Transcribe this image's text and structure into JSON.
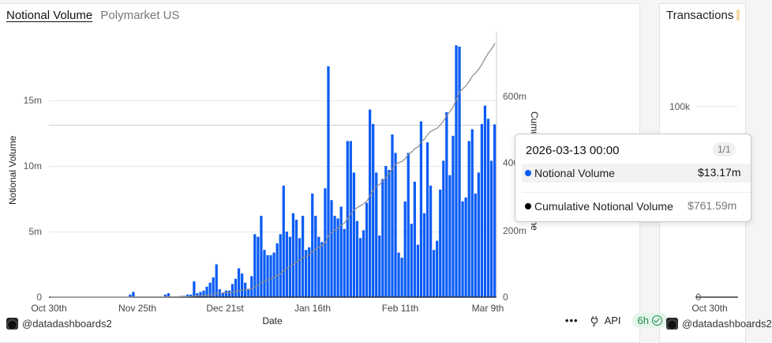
{
  "main_chart": {
    "title": "Notional Volume",
    "subtitle": "Polymarket US",
    "y_axis_label": "Notional Volume",
    "y2_axis_label": "Cumulative Notional Volume",
    "x_axis_label": "Date",
    "y_ticks": [
      "0",
      "5m",
      "10m",
      "15m"
    ],
    "y2_ticks": [
      "0",
      "200m",
      "400m",
      "600m"
    ],
    "x_ticks": [
      "Oct 30th",
      "Nov 25th",
      "Dec 21st",
      "Jan 16th",
      "Feb 11th",
      "Mar 9th"
    ],
    "author": "@datadashboards2",
    "bar_color": "#0a5cf5",
    "line_color": "#555555"
  },
  "tooltip": {
    "date": "2026-03-13 00:00",
    "page": "1/1",
    "rows": [
      {
        "label": "Notional Volume",
        "value": "$13.17m",
        "dot_color": "#0a5cf5"
      },
      {
        "label": "Cumulative Notional Volume",
        "value": "$761.59m",
        "dot_color": "#000000"
      }
    ]
  },
  "footer": {
    "more_label": "•••",
    "api_label": "API",
    "refresh_badge": "6h"
  },
  "side_chart": {
    "title": "Transactions",
    "y_ticks": [
      "0",
      "100k"
    ],
    "x_ticks": [
      "Oct 30th"
    ],
    "author": "@datadashboards2"
  },
  "chart_data": {
    "type": "bar",
    "title": "Notional Volume",
    "subtitle": "Polymarket US",
    "xlabel": "Date",
    "ylabel": "Notional Volume",
    "y2label": "Cumulative Notional Volume",
    "ylim": [
      0,
      19.5
    ],
    "y2lim": [
      0,
      760
    ],
    "x_start": "2025-10-30",
    "x_end": "2026-03-13",
    "x_tick_labels": [
      "Oct 30th",
      "Nov 25th",
      "Dec 21st",
      "Jan 16th",
      "Feb 11th",
      "Mar 9th"
    ],
    "series": [
      {
        "name": "Notional Volume",
        "type": "bar",
        "axis": "left",
        "unit": "millions USD",
        "values": [
          0,
          0,
          0,
          0,
          0,
          0,
          0,
          0,
          0,
          0,
          0,
          0,
          0,
          0,
          0,
          0,
          0,
          0,
          0,
          0,
          0,
          0,
          0,
          0,
          0,
          0.2,
          0.4,
          0,
          0,
          0,
          0,
          0,
          0,
          0,
          0,
          0,
          0.2,
          0.3,
          0,
          0,
          0,
          0.1,
          0.1,
          0.2,
          0.2,
          1.2,
          0.3,
          0.4,
          0.5,
          0.8,
          1.1,
          1.5,
          2.5,
          0.6,
          0.3,
          0.5,
          0.5,
          1.0,
          1.4,
          2.2,
          1.8,
          1.1,
          0.6,
          1.6,
          4.8,
          4.6,
          6.2,
          3.6,
          3.2,
          3.2,
          3.4,
          4.1,
          4.8,
          8.5,
          5.0,
          4.6,
          6.4,
          5.9,
          4.5,
          6.2,
          3.6,
          3.8,
          7.9,
          6.2,
          4.6,
          4.2,
          8.3,
          17.6,
          7.4,
          6.2,
          6.0,
          6.9,
          5.2,
          11.9,
          11.9,
          9.5,
          5.8,
          4.5,
          5.1,
          7.2,
          14.3,
          13.2,
          9.5,
          4.7,
          9.0,
          10.0,
          9.7,
          12.4,
          11.0,
          3.4,
          3.0,
          7.3,
          11.0,
          5.6,
          8.8,
          4.0,
          13.4,
          6.4,
          11.8,
          8.5,
          3.6,
          4.3,
          8.2,
          10.4,
          14.1,
          9.3,
          12.3,
          19.2,
          19.1,
          7.3,
          7.6,
          11.9,
          12.8,
          7.9,
          9.5,
          13.2,
          14.6,
          13.6,
          10.4,
          13.17
        ]
      },
      {
        "name": "Cumulative Notional Volume",
        "type": "line",
        "axis": "right",
        "unit": "millions USD",
        "end_value": 761.59
      }
    ],
    "tooltip_point": {
      "date": "2026-03-13 00:00",
      "notional_volume": 13.17,
      "cumulative_notional_volume": 761.59
    },
    "grid": true,
    "legend": "none"
  }
}
